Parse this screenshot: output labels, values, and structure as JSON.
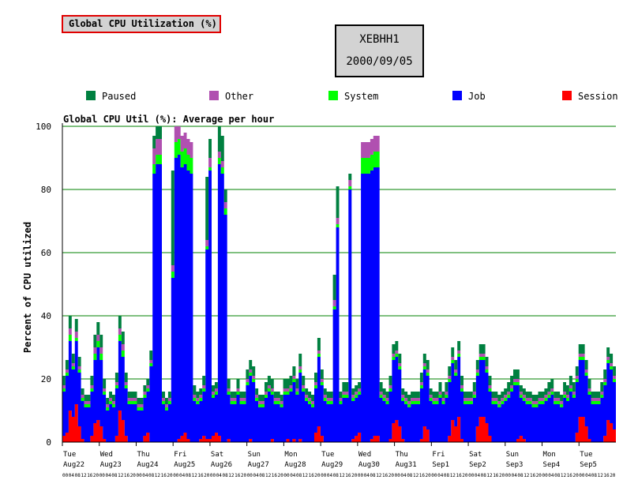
{
  "header": {
    "title": "Global CPU Utilization (%)",
    "host": "XEBHH1",
    "date": "2000/09/05"
  },
  "chart_data": {
    "type": "area",
    "stacked": true,
    "title": "Global CPU Util (%): Average per hour",
    "xlabel": "",
    "ylabel": "Percent of CPU utilized",
    "ylim": [
      0,
      100
    ],
    "yticks": [
      0,
      20,
      40,
      60,
      80,
      100
    ],
    "grid": "horizontal",
    "legend_position": "top",
    "hour_tick_labels": [
      "00",
      "04",
      "08",
      "12",
      "16",
      "20"
    ],
    "days": [
      {
        "weekday": "Tue",
        "date": "Aug22"
      },
      {
        "weekday": "Wed",
        "date": "Aug23"
      },
      {
        "weekday": "Thu",
        "date": "Aug24"
      },
      {
        "weekday": "Fri",
        "date": "Aug25"
      },
      {
        "weekday": "Sat",
        "date": "Aug26"
      },
      {
        "weekday": "Sun",
        "date": "Aug27"
      },
      {
        "weekday": "Mon",
        "date": "Aug28"
      },
      {
        "weekday": "Tue",
        "date": "Aug29"
      },
      {
        "weekday": "Wed",
        "date": "Aug30"
      },
      {
        "weekday": "Thu",
        "date": "Aug31"
      },
      {
        "weekday": "Fri",
        "date": "Sep1"
      },
      {
        "weekday": "Sat",
        "date": "Sep2"
      },
      {
        "weekday": "Sun",
        "date": "Sep3"
      },
      {
        "weekday": "Mon",
        "date": "Sep4"
      },
      {
        "weekday": "Tue",
        "date": "Sep5"
      }
    ],
    "series": [
      {
        "name": "Session",
        "color": "#ff0000",
        "values": [
          2,
          3,
          10,
          8,
          12,
          5,
          1,
          0,
          0,
          2,
          6,
          7,
          5,
          1,
          0,
          0,
          0,
          2,
          10,
          7,
          2,
          0,
          0,
          0,
          0,
          0,
          2,
          3,
          0,
          0,
          0,
          0,
          0,
          0,
          0,
          0,
          0,
          1,
          2,
          3,
          1,
          0,
          0,
          0,
          1,
          2,
          1,
          1,
          2,
          3,
          2,
          0,
          0,
          1,
          0,
          0,
          0,
          0,
          0,
          0,
          1,
          0,
          0,
          0,
          0,
          0,
          0,
          1,
          0,
          0,
          0,
          0,
          1,
          0,
          1,
          0,
          1,
          0,
          0,
          0,
          0,
          3,
          5,
          2,
          0,
          0,
          0,
          0,
          0,
          0,
          0,
          0,
          0,
          1,
          2,
          3,
          0,
          0,
          0,
          1,
          2,
          2,
          0,
          0,
          0,
          1,
          6,
          7,
          5,
          1,
          0,
          0,
          0,
          0,
          0,
          1,
          5,
          4,
          0,
          0,
          0,
          0,
          0,
          0,
          2,
          7,
          5,
          8,
          1,
          0,
          0,
          0,
          0,
          5,
          8,
          8,
          6,
          2,
          0,
          0,
          0,
          0,
          0,
          0,
          0,
          0,
          1,
          2,
          1,
          0,
          0,
          0,
          0,
          0,
          0,
          0,
          0,
          0,
          0,
          0,
          0,
          0,
          0,
          0,
          0,
          3,
          8,
          8,
          5,
          1,
          0,
          0,
          0,
          0,
          2,
          7,
          6,
          4
        ]
      },
      {
        "name": "Job",
        "color": "#0000ff",
        "values": [
          14,
          18,
          22,
          15,
          20,
          17,
          12,
          11,
          11,
          14,
          20,
          23,
          21,
          14,
          10,
          12,
          11,
          15,
          22,
          20,
          15,
          12,
          12,
          12,
          10,
          10,
          12,
          13,
          24,
          85,
          88,
          88,
          12,
          10,
          12,
          52,
          90,
          90,
          85,
          85,
          85,
          85,
          13,
          12,
          12,
          14,
          60,
          85,
          12,
          12,
          86,
          85,
          72,
          14,
          12,
          12,
          15,
          12,
          12,
          18,
          20,
          19,
          13,
          11,
          11,
          14,
          16,
          14,
          12,
          12,
          11,
          15,
          14,
          16,
          18,
          15,
          21,
          16,
          13,
          12,
          11,
          14,
          22,
          16,
          13,
          12,
          12,
          42,
          68,
          12,
          14,
          14,
          80,
          12,
          12,
          12,
          85,
          85,
          85,
          85,
          85,
          85,
          14,
          13,
          12,
          15,
          20,
          20,
          18,
          12,
          12,
          11,
          12,
          12,
          12,
          16,
          18,
          17,
          13,
          12,
          12,
          14,
          12,
          14,
          17,
          18,
          16,
          19,
          15,
          12,
          12,
          12,
          14,
          16,
          18,
          18,
          16,
          14,
          12,
          12,
          11,
          12,
          13,
          14,
          16,
          18,
          17,
          12,
          12,
          12,
          12,
          11,
          11,
          12,
          12,
          13,
          14,
          15,
          12,
          12,
          11,
          14,
          13,
          16,
          14,
          16,
          18,
          18,
          16,
          14,
          12,
          12,
          12,
          14,
          16,
          18,
          17,
          15
        ]
      },
      {
        "name": "System",
        "color": "#00ff00",
        "values": [
          1,
          1,
          2,
          1,
          1,
          1,
          1,
          1,
          1,
          1,
          2,
          2,
          2,
          1,
          1,
          1,
          1,
          1,
          2,
          2,
          1,
          1,
          1,
          1,
          1,
          1,
          1,
          1,
          1,
          3,
          3,
          3,
          1,
          1,
          1,
          2,
          5,
          5,
          5,
          5,
          5,
          5,
          1,
          1,
          1,
          1,
          1,
          1,
          1,
          1,
          2,
          2,
          2,
          1,
          1,
          1,
          1,
          1,
          1,
          1,
          1,
          1,
          1,
          1,
          1,
          1,
          1,
          1,
          1,
          1,
          1,
          1,
          1,
          1,
          1,
          1,
          1,
          1,
          1,
          1,
          1,
          1,
          1,
          1,
          1,
          1,
          1,
          1,
          1,
          1,
          1,
          1,
          1,
          1,
          1,
          1,
          5,
          5,
          5,
          5,
          5,
          5,
          1,
          1,
          1,
          1,
          1,
          1,
          1,
          1,
          1,
          1,
          1,
          1,
          1,
          1,
          1,
          1,
          1,
          1,
          1,
          1,
          1,
          1,
          1,
          1,
          1,
          1,
          1,
          1,
          1,
          1,
          1,
          1,
          1,
          1,
          1,
          1,
          1,
          1,
          1,
          1,
          1,
          1,
          1,
          1,
          1,
          1,
          1,
          1,
          1,
          1,
          1,
          1,
          1,
          1,
          1,
          1,
          1,
          1,
          1,
          1,
          1,
          1,
          1,
          1,
          1,
          1,
          1,
          1,
          1,
          1,
          1,
          1,
          1,
          1,
          1,
          1
        ]
      },
      {
        "name": "Other",
        "color": "#b050b0",
        "values": [
          1,
          1,
          2,
          1,
          2,
          1,
          1,
          1,
          1,
          1,
          2,
          2,
          2,
          1,
          1,
          1,
          1,
          1,
          2,
          2,
          1,
          1,
          1,
          1,
          1,
          1,
          1,
          1,
          1,
          5,
          5,
          5,
          1,
          1,
          1,
          2,
          5,
          5,
          5,
          5,
          5,
          5,
          1,
          1,
          1,
          1,
          2,
          3,
          1,
          1,
          2,
          2,
          2,
          1,
          1,
          1,
          1,
          1,
          1,
          1,
          1,
          1,
          1,
          1,
          1,
          1,
          1,
          1,
          1,
          1,
          1,
          1,
          1,
          1,
          1,
          1,
          1,
          1,
          1,
          1,
          1,
          1,
          1,
          1,
          1,
          1,
          1,
          2,
          2,
          1,
          1,
          1,
          2,
          1,
          1,
          1,
          5,
          5,
          5,
          5,
          5,
          5,
          1,
          1,
          1,
          1,
          1,
          1,
          1,
          1,
          1,
          1,
          1,
          1,
          1,
          1,
          1,
          1,
          1,
          1,
          1,
          1,
          1,
          1,
          1,
          1,
          1,
          1,
          1,
          1,
          1,
          1,
          1,
          1,
          1,
          1,
          1,
          1,
          1,
          1,
          1,
          1,
          1,
          1,
          1,
          1,
          1,
          1,
          1,
          1,
          1,
          1,
          1,
          1,
          1,
          1,
          1,
          1,
          1,
          1,
          1,
          1,
          1,
          1,
          1,
          1,
          1,
          1,
          1,
          1,
          1,
          1,
          1,
          1,
          1,
          1,
          1,
          1
        ]
      },
      {
        "name": "Paused",
        "color": "#008040",
        "values": [
          3,
          3,
          4,
          3,
          4,
          3,
          2,
          2,
          2,
          3,
          4,
          4,
          4,
          3,
          2,
          2,
          2,
          3,
          4,
          4,
          3,
          2,
          2,
          2,
          2,
          2,
          2,
          2,
          3,
          4,
          4,
          4,
          2,
          2,
          2,
          30,
          0,
          0,
          0,
          0,
          0,
          0,
          3,
          2,
          2,
          3,
          20,
          6,
          2,
          2,
          8,
          8,
          4,
          3,
          2,
          2,
          3,
          2,
          2,
          3,
          3,
          3,
          2,
          2,
          2,
          3,
          3,
          3,
          2,
          2,
          2,
          3,
          3,
          3,
          3,
          3,
          4,
          3,
          2,
          2,
          2,
          3,
          4,
          3,
          2,
          2,
          2,
          8,
          10,
          2,
          3,
          3,
          2,
          2,
          2,
          2,
          0,
          0,
          0,
          0,
          0,
          0,
          3,
          2,
          2,
          3,
          3,
          3,
          3,
          2,
          2,
          2,
          2,
          2,
          2,
          3,
          3,
          3,
          2,
          2,
          2,
          3,
          2,
          3,
          3,
          3,
          3,
          3,
          3,
          2,
          2,
          2,
          3,
          3,
          3,
          3,
          3,
          3,
          2,
          2,
          2,
          2,
          2,
          3,
          3,
          3,
          3,
          2,
          2,
          2,
          2,
          2,
          2,
          2,
          2,
          2,
          3,
          3,
          2,
          2,
          2,
          3,
          3,
          3,
          3,
          3,
          3,
          3,
          3,
          3,
          2,
          2,
          2,
          3,
          3,
          3,
          3,
          3
        ]
      }
    ]
  }
}
